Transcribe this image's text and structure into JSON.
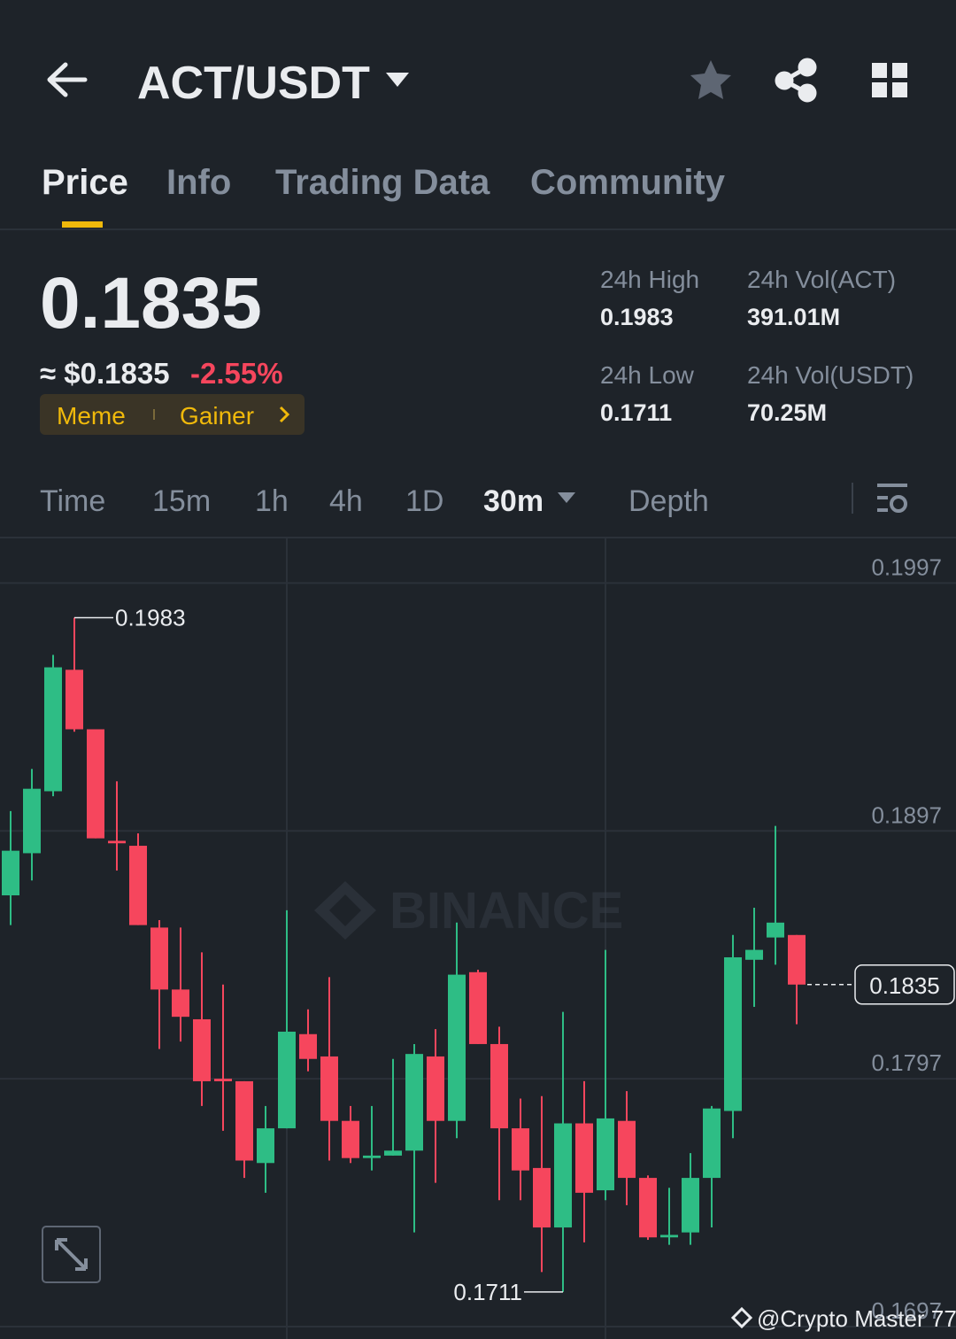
{
  "header": {
    "pair": "ACT/USDT"
  },
  "tabs": [
    "Price",
    "Info",
    "Trading Data",
    "Community"
  ],
  "price": {
    "last": "0.1835",
    "approx": "≈ $0.1835",
    "change": "-2.55%",
    "tags": [
      "Meme",
      "Gainer"
    ]
  },
  "stats": [
    {
      "label": "24h High",
      "value": "0.1983"
    },
    {
      "label": "24h Vol(ACT)",
      "value": "391.01M"
    },
    {
      "label": "24h Low",
      "value": "0.1711"
    },
    {
      "label": "24h Vol(USDT)",
      "value": "70.25M"
    }
  ],
  "intervals": [
    "Time",
    "15m",
    "1h",
    "4h",
    "1D",
    "30m",
    "Depth"
  ],
  "chart_data": {
    "type": "candlestick",
    "watermark": "BINANCE",
    "up_color": "#2ebd85",
    "down_color": "#f6465d",
    "open": [
      0.1871,
      0.1888,
      0.1913,
      0.1962,
      0.1938,
      0.1893,
      0.1891,
      0.1858,
      0.1833,
      0.1821,
      0.1797,
      0.1796,
      0.1763,
      0.1777,
      0.1815,
      0.1806,
      0.178,
      0.1765,
      0.1766,
      0.1768,
      0.1806,
      0.178,
      0.184,
      0.1811,
      0.1777,
      0.1761,
      0.1737,
      0.1779,
      0.1752,
      0.178,
      0.1757,
      0.1733,
      0.1735,
      0.1757,
      0.1784,
      0.1845,
      0.1854,
      0.1855
    ],
    "high": [
      0.1905,
      0.1922,
      0.1968,
      0.1983,
      0.1938,
      0.1917,
      0.1896,
      0.1861,
      0.1858,
      0.1848,
      0.1835,
      0.1796,
      0.1786,
      0.1865,
      0.1825,
      0.1838,
      0.1786,
      0.1786,
      0.1805,
      0.1811,
      0.1817,
      0.186,
      0.1841,
      0.1818,
      0.1789,
      0.179,
      0.1824,
      0.1796,
      0.1849,
      0.1792,
      0.1758,
      0.1753,
      0.1767,
      0.1786,
      0.1855,
      0.1866,
      0.1899,
      0.1855
    ],
    "low": [
      0.1859,
      0.1877,
      0.1911,
      0.1937,
      0.1894,
      0.1881,
      0.1859,
      0.1809,
      0.1812,
      0.1786,
      0.1776,
      0.1757,
      0.1751,
      0.1777,
      0.18,
      0.1764,
      0.1763,
      0.176,
      0.1766,
      0.1735,
      0.1755,
      0.1773,
      0.1811,
      0.1748,
      0.1748,
      0.1719,
      0.1711,
      0.1731,
      0.1748,
      0.1746,
      0.1732,
      0.173,
      0.173,
      0.1737,
      0.1773,
      0.1826,
      0.1843,
      0.1819
    ],
    "close": [
      0.1889,
      0.1914,
      0.1963,
      0.1938,
      0.1894,
      0.1892,
      0.1859,
      0.1833,
      0.1822,
      0.1796,
      0.1796,
      0.1764,
      0.1777,
      0.1816,
      0.1805,
      0.178,
      0.1765,
      0.1766,
      0.1768,
      0.1807,
      0.178,
      0.1839,
      0.1811,
      0.1777,
      0.176,
      0.1737,
      0.1779,
      0.1751,
      0.1781,
      0.1757,
      0.1733,
      0.1734,
      0.1757,
      0.1785,
      0.1846,
      0.1849,
      0.186,
      0.1835
    ],
    "ylim": [
      0.1692,
      0.2015
    ],
    "yticks": [
      0.1697,
      0.1797,
      0.1897,
      0.1997
    ],
    "grid": true,
    "annotations": {
      "high": 0.1983,
      "low": 0.1711,
      "last": 0.1835
    }
  },
  "footer": "@Crypto Master 77"
}
